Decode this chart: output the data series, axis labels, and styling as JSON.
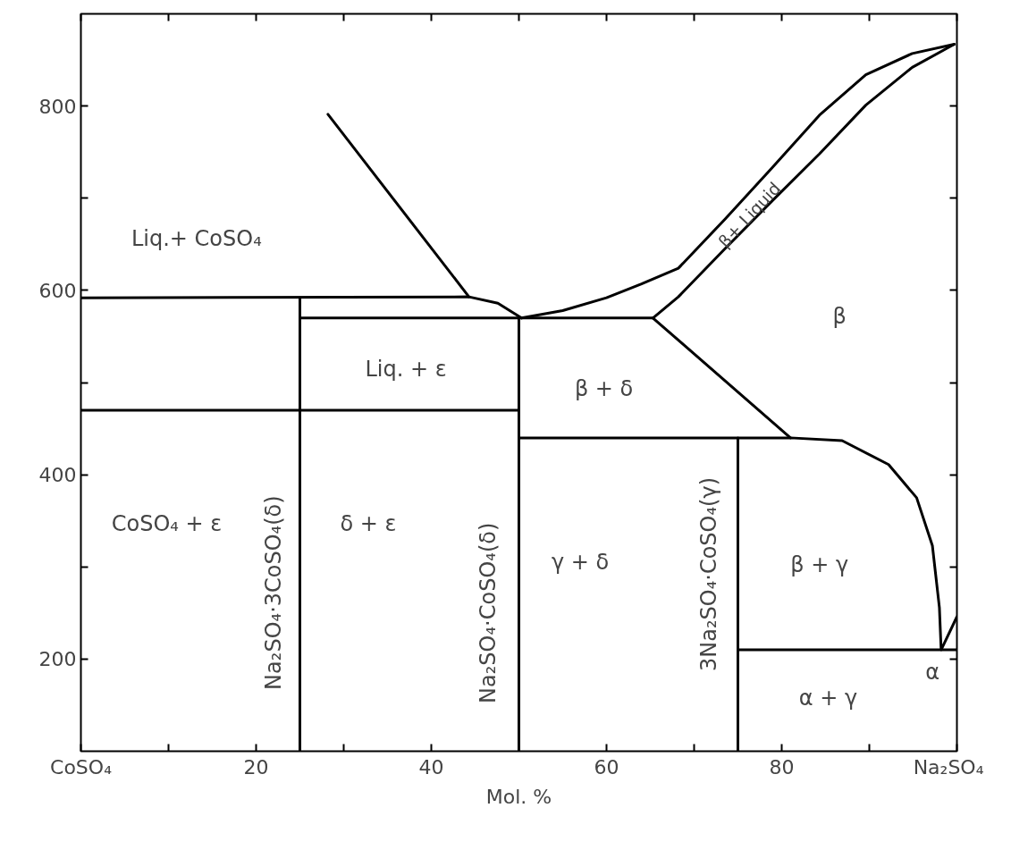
{
  "chart_data": {
    "type": "line",
    "xlabel": "Mol. %",
    "xlim": [
      0,
      100
    ],
    "ylim": [
      100,
      900
    ],
    "xticks": [
      {
        "value": 0,
        "label": "CoSO₄"
      },
      {
        "value": 10,
        "label": null
      },
      20,
      {
        "value": 30,
        "label": null
      },
      40,
      {
        "value": 50,
        "label": null
      },
      60,
      {
        "value": 70,
        "label": null
      },
      80,
      {
        "value": 90,
        "label": null
      },
      {
        "value": 100,
        "label": "Na₂SO₄"
      }
    ],
    "yticks": [
      200,
      {
        "value": 300,
        "label": null
      },
      400,
      {
        "value": 500,
        "label": null
      },
      600,
      {
        "value": 700,
        "label": null
      },
      800
    ],
    "grid": false,
    "marker": "none",
    "line_style": "solid",
    "series": [
      {
        "color": "#000000",
        "x": [
          0,
          44.3,
          47.6,
          50.3
        ],
        "values": [
          592,
          593,
          586,
          570
        ]
      },
      {
        "color": "#000000",
        "x": [
          28.2,
          44.3
        ],
        "values": [
          791,
          593
        ]
      },
      {
        "color": "#000000",
        "x": [
          50.3,
          55,
          60,
          64,
          68.2,
          73.5,
          78.9,
          84.3,
          89.6,
          94.9,
          99.7
        ],
        "values": [
          570,
          578,
          592,
          607,
          624,
          677,
          733,
          790,
          834,
          857,
          867
        ]
      },
      {
        "color": "#000000",
        "x": [
          65.3,
          68.2,
          73.5,
          78.9,
          84.3,
          89.6,
          94.9,
          99.7
        ],
        "values": [
          570,
          593,
          645,
          697,
          748,
          801,
          842,
          867
        ]
      },
      {
        "color": "#000000",
        "x": [
          25,
          65.3
        ],
        "values": [
          570,
          570
        ]
      },
      {
        "color": "#000000",
        "x": [
          65.3,
          81
        ],
        "values": [
          570,
          440
        ]
      },
      {
        "color": "#000000",
        "x": [
          0,
          50
        ],
        "values": [
          470,
          470
        ]
      },
      {
        "color": "#000000",
        "x": [
          50,
          81,
          86.9,
          92.2,
          95.4,
          97.2,
          98.0,
          98.2,
          100
        ],
        "values": [
          440,
          440,
          437,
          411,
          375,
          323,
          256,
          210,
          246
        ]
      },
      {
        "color": "#000000",
        "x": [
          75,
          100
        ],
        "values": [
          210,
          210
        ]
      },
      {
        "color": "#000000",
        "x": [
          25,
          25
        ],
        "values": [
          592,
          100
        ]
      },
      {
        "color": "#000000",
        "x": [
          50,
          50
        ],
        "values": [
          570,
          100
        ]
      },
      {
        "color": "#000000",
        "x": [
          75,
          75
        ],
        "values": [
          440,
          100
        ]
      }
    ],
    "annotations": [
      "Liq.+ CoSO₄",
      "Liq. + ε",
      "CoSO₄ + ε",
      "Na₂SO₄·3CoSO₄(δ)",
      "δ + ε",
      "Na₂SO₄·CoSO₄(δ)",
      "γ + δ",
      "3Na₂SO₄·CoSO₄(γ)",
      "β + δ",
      "β+ Liquid",
      "β",
      "β + γ",
      "α + γ",
      "α"
    ]
  }
}
